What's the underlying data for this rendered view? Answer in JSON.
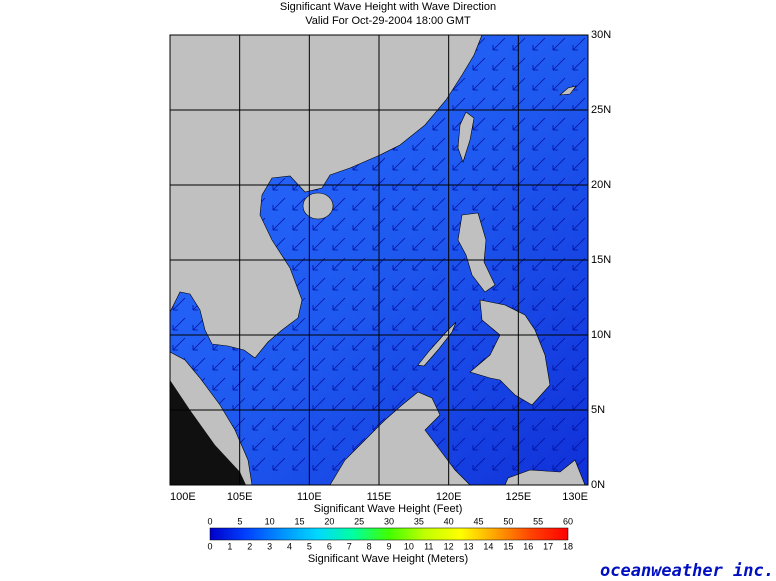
{
  "header": {
    "title": "Significant Wave Height with Wave Direction",
    "subtitle": "Valid For Oct-29-2004 18:00 GMT"
  },
  "map": {
    "lon_range": [
      100,
      130
    ],
    "lat_range": [
      0,
      30
    ],
    "xticks": [
      {
        "value": 100,
        "label": "100E"
      },
      {
        "value": 105,
        "label": "105E"
      },
      {
        "value": 110,
        "label": "110E"
      },
      {
        "value": 115,
        "label": "115E"
      },
      {
        "value": 120,
        "label": "120E"
      },
      {
        "value": 125,
        "label": "125E"
      },
      {
        "value": 130,
        "label": "130E"
      }
    ],
    "yticks": [
      {
        "value": 0,
        "label": "0N"
      },
      {
        "value": 5,
        "label": "5N"
      },
      {
        "value": 10,
        "label": "10N"
      },
      {
        "value": 15,
        "label": "15N"
      },
      {
        "value": 20,
        "label": "20N"
      },
      {
        "value": 25,
        "label": "25N"
      },
      {
        "value": 30,
        "label": "30N"
      }
    ]
  },
  "colorbar": {
    "feet_label": "Significant Wave Height (Feet)",
    "feet_range": [
      0,
      60
    ],
    "feet_ticks": [
      0,
      5,
      10,
      15,
      20,
      25,
      30,
      35,
      40,
      45,
      50,
      55,
      60
    ],
    "meter_label": "Significant Wave Height (Meters)",
    "meter_range": [
      0,
      18
    ],
    "meter_ticks": [
      0,
      1,
      2,
      3,
      4,
      5,
      6,
      7,
      8,
      9,
      10,
      11,
      12,
      13,
      14,
      15,
      16,
      17,
      18
    ],
    "colors": [
      "#0000c8",
      "#0040ff",
      "#0090ff",
      "#00d8ff",
      "#00ffa0",
      "#40ff00",
      "#c0ff00",
      "#ffff00",
      "#ffa000",
      "#ff4000",
      "#ff0000"
    ]
  },
  "logo": "oceanweather inc."
}
